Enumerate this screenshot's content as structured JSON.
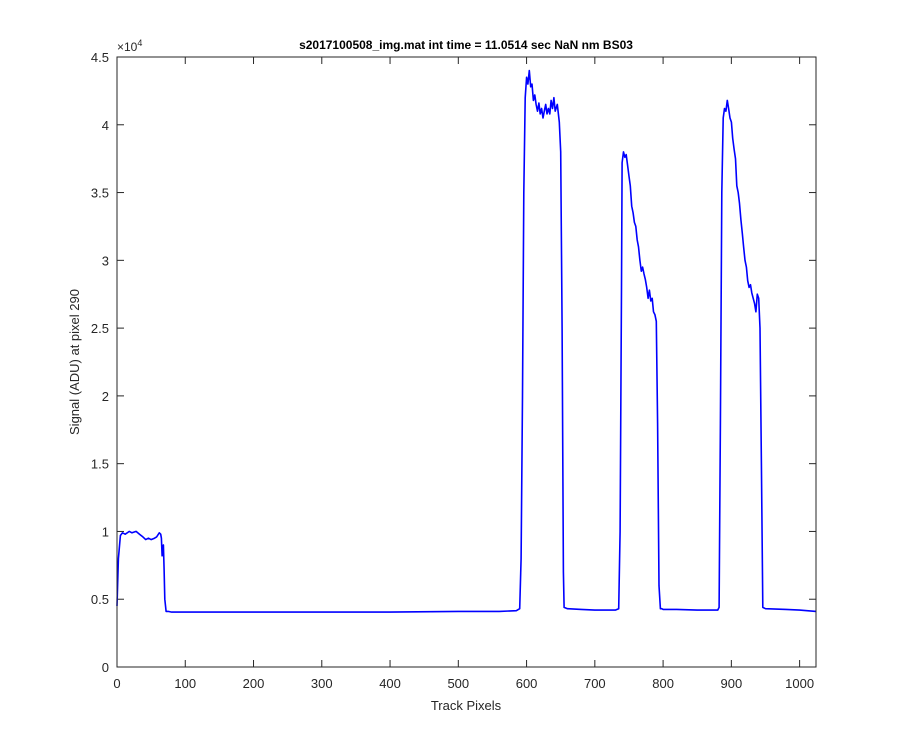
{
  "chart_data": {
    "type": "line",
    "title": "s2017100508_img.mat int time = 11.0514 sec  NaN nm BS03",
    "xlabel": "Track Pixels",
    "ylabel": "Signal (ADU) at pixel 290",
    "y_exponent_label": "×10",
    "y_exponent_power": "4",
    "xlim": [
      0,
      1024
    ],
    "ylim": [
      0,
      4.5
    ],
    "y_multiplier": 10000,
    "x_ticks": [
      "0",
      "100",
      "200",
      "300",
      "400",
      "500",
      "600",
      "700",
      "800",
      "900",
      "1000"
    ],
    "y_ticks": [
      "0",
      "0.5",
      "1",
      "1.5",
      "2",
      "2.5",
      "3",
      "3.5",
      "4",
      "4.5"
    ],
    "grid": false,
    "line_color": "#0000ff",
    "series": [
      {
        "x": [
          0,
          2,
          5,
          8,
          12,
          18,
          22,
          28,
          33,
          38,
          42,
          46,
          50,
          55,
          58,
          62,
          64,
          65,
          66,
          67,
          68,
          69,
          70,
          72,
          75,
          80,
          100,
          200,
          300,
          400,
          500,
          560,
          585,
          590,
          592,
          594,
          596,
          598,
          600,
          602,
          604,
          606,
          608,
          610,
          612,
          614,
          616,
          618,
          620,
          622,
          624,
          626,
          628,
          630,
          632,
          634,
          636,
          638,
          640,
          642,
          645,
          648,
          650,
          652,
          654,
          655,
          660,
          680,
          700,
          720,
          730,
          735,
          737,
          739,
          740,
          742,
          744,
          746,
          748,
          750,
          752,
          754,
          756,
          758,
          760,
          762,
          764,
          766,
          768,
          770,
          772,
          774,
          776,
          778,
          780,
          782,
          784,
          786,
          788,
          790,
          792,
          794,
          796,
          798,
          800,
          820,
          850,
          870,
          880,
          882,
          884,
          886,
          888,
          890,
          892,
          894,
          896,
          898,
          900,
          902,
          904,
          906,
          908,
          910,
          912,
          914,
          916,
          918,
          920,
          922,
          924,
          926,
          928,
          930,
          932,
          934,
          936,
          938,
          940,
          942,
          944,
          946,
          950,
          980,
          1000,
          1024
        ],
        "y": [
          0.45,
          0.8,
          0.97,
          0.99,
          0.98,
          1.0,
          0.99,
          1.0,
          0.98,
          0.96,
          0.94,
          0.95,
          0.94,
          0.95,
          0.96,
          0.99,
          0.98,
          0.95,
          0.82,
          0.88,
          0.9,
          0.72,
          0.5,
          0.41,
          0.41,
          0.405,
          0.405,
          0.405,
          0.405,
          0.405,
          0.41,
          0.41,
          0.415,
          0.43,
          0.8,
          2.0,
          3.5,
          4.2,
          4.35,
          4.3,
          4.4,
          4.28,
          4.3,
          4.18,
          4.22,
          4.15,
          4.1,
          4.16,
          4.08,
          4.12,
          4.05,
          4.1,
          4.15,
          4.08,
          4.12,
          4.08,
          4.18,
          4.12,
          4.2,
          4.1,
          4.15,
          4.02,
          3.8,
          2.5,
          0.7,
          0.44,
          0.43,
          0.425,
          0.42,
          0.42,
          0.42,
          0.43,
          1.0,
          2.8,
          3.72,
          3.8,
          3.76,
          3.78,
          3.7,
          3.62,
          3.55,
          3.4,
          3.35,
          3.28,
          3.25,
          3.15,
          3.1,
          3.0,
          2.92,
          2.95,
          2.9,
          2.86,
          2.8,
          2.72,
          2.78,
          2.7,
          2.72,
          2.62,
          2.6,
          2.55,
          1.8,
          0.6,
          0.43,
          0.43,
          0.425,
          0.425,
          0.42,
          0.42,
          0.42,
          0.44,
          1.8,
          3.5,
          4.05,
          4.12,
          4.1,
          4.18,
          4.12,
          4.05,
          4.02,
          3.9,
          3.82,
          3.75,
          3.55,
          3.5,
          3.42,
          3.3,
          3.2,
          3.1,
          3.0,
          2.95,
          2.85,
          2.8,
          2.82,
          2.76,
          2.72,
          2.68,
          2.62,
          2.75,
          2.72,
          2.5,
          1.5,
          0.44,
          0.43,
          0.425,
          0.42,
          0.41
        ]
      }
    ]
  }
}
